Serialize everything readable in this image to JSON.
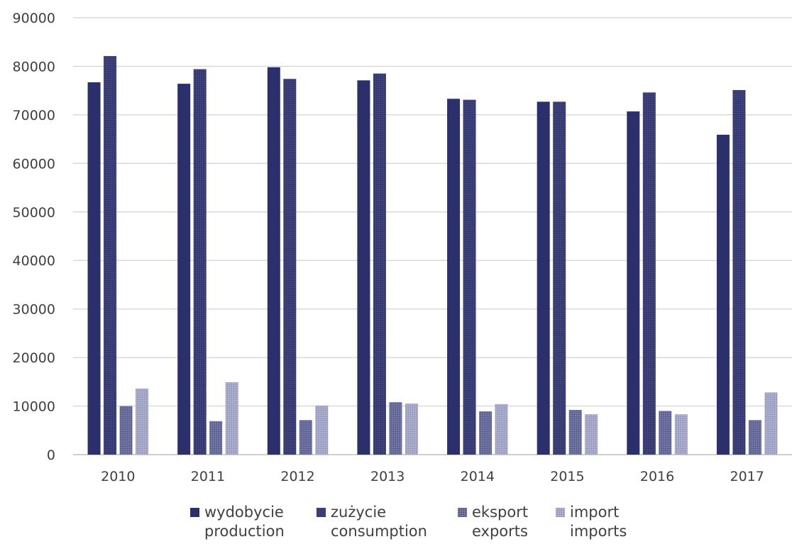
{
  "chart_data": {
    "type": "bar",
    "title": "",
    "xlabel": "",
    "ylabel": "",
    "categories": [
      "2010",
      "2011",
      "2012",
      "2013",
      "2014",
      "2015",
      "2016",
      "2017"
    ],
    "ylim": [
      0,
      90000
    ],
    "yticks": [
      "0",
      "10000",
      "20000",
      "30000",
      "40000",
      "50000",
      "60000",
      "70000",
      "80000",
      "90000"
    ],
    "grid": true,
    "legend_position": "bottom",
    "series": [
      {
        "name": "wydobycie",
        "name_en": "production",
        "color": "#2b2f6b",
        "pattern": "solid",
        "values": [
          76700,
          76400,
          79800,
          77100,
          73300,
          72700,
          70700,
          65900
        ]
      },
      {
        "name": "zużycie",
        "name_en": "consumption",
        "color": "#3b3f7e",
        "pattern": "dense-grid",
        "values": [
          82100,
          79400,
          77400,
          78500,
          73100,
          72700,
          74600,
          75100
        ]
      },
      {
        "name": "eksport",
        "name_en": "exports",
        "color": "#6b6f9e",
        "pattern": "medium-grid",
        "values": [
          10000,
          6900,
          7100,
          10800,
          8900,
          9200,
          9000,
          7100
        ]
      },
      {
        "name": "import",
        "name_en": "imports",
        "color": "#a2a5c6",
        "pattern": "light-grid",
        "values": [
          13600,
          14900,
          10100,
          10500,
          10400,
          8300,
          8300,
          12800
        ]
      }
    ]
  }
}
